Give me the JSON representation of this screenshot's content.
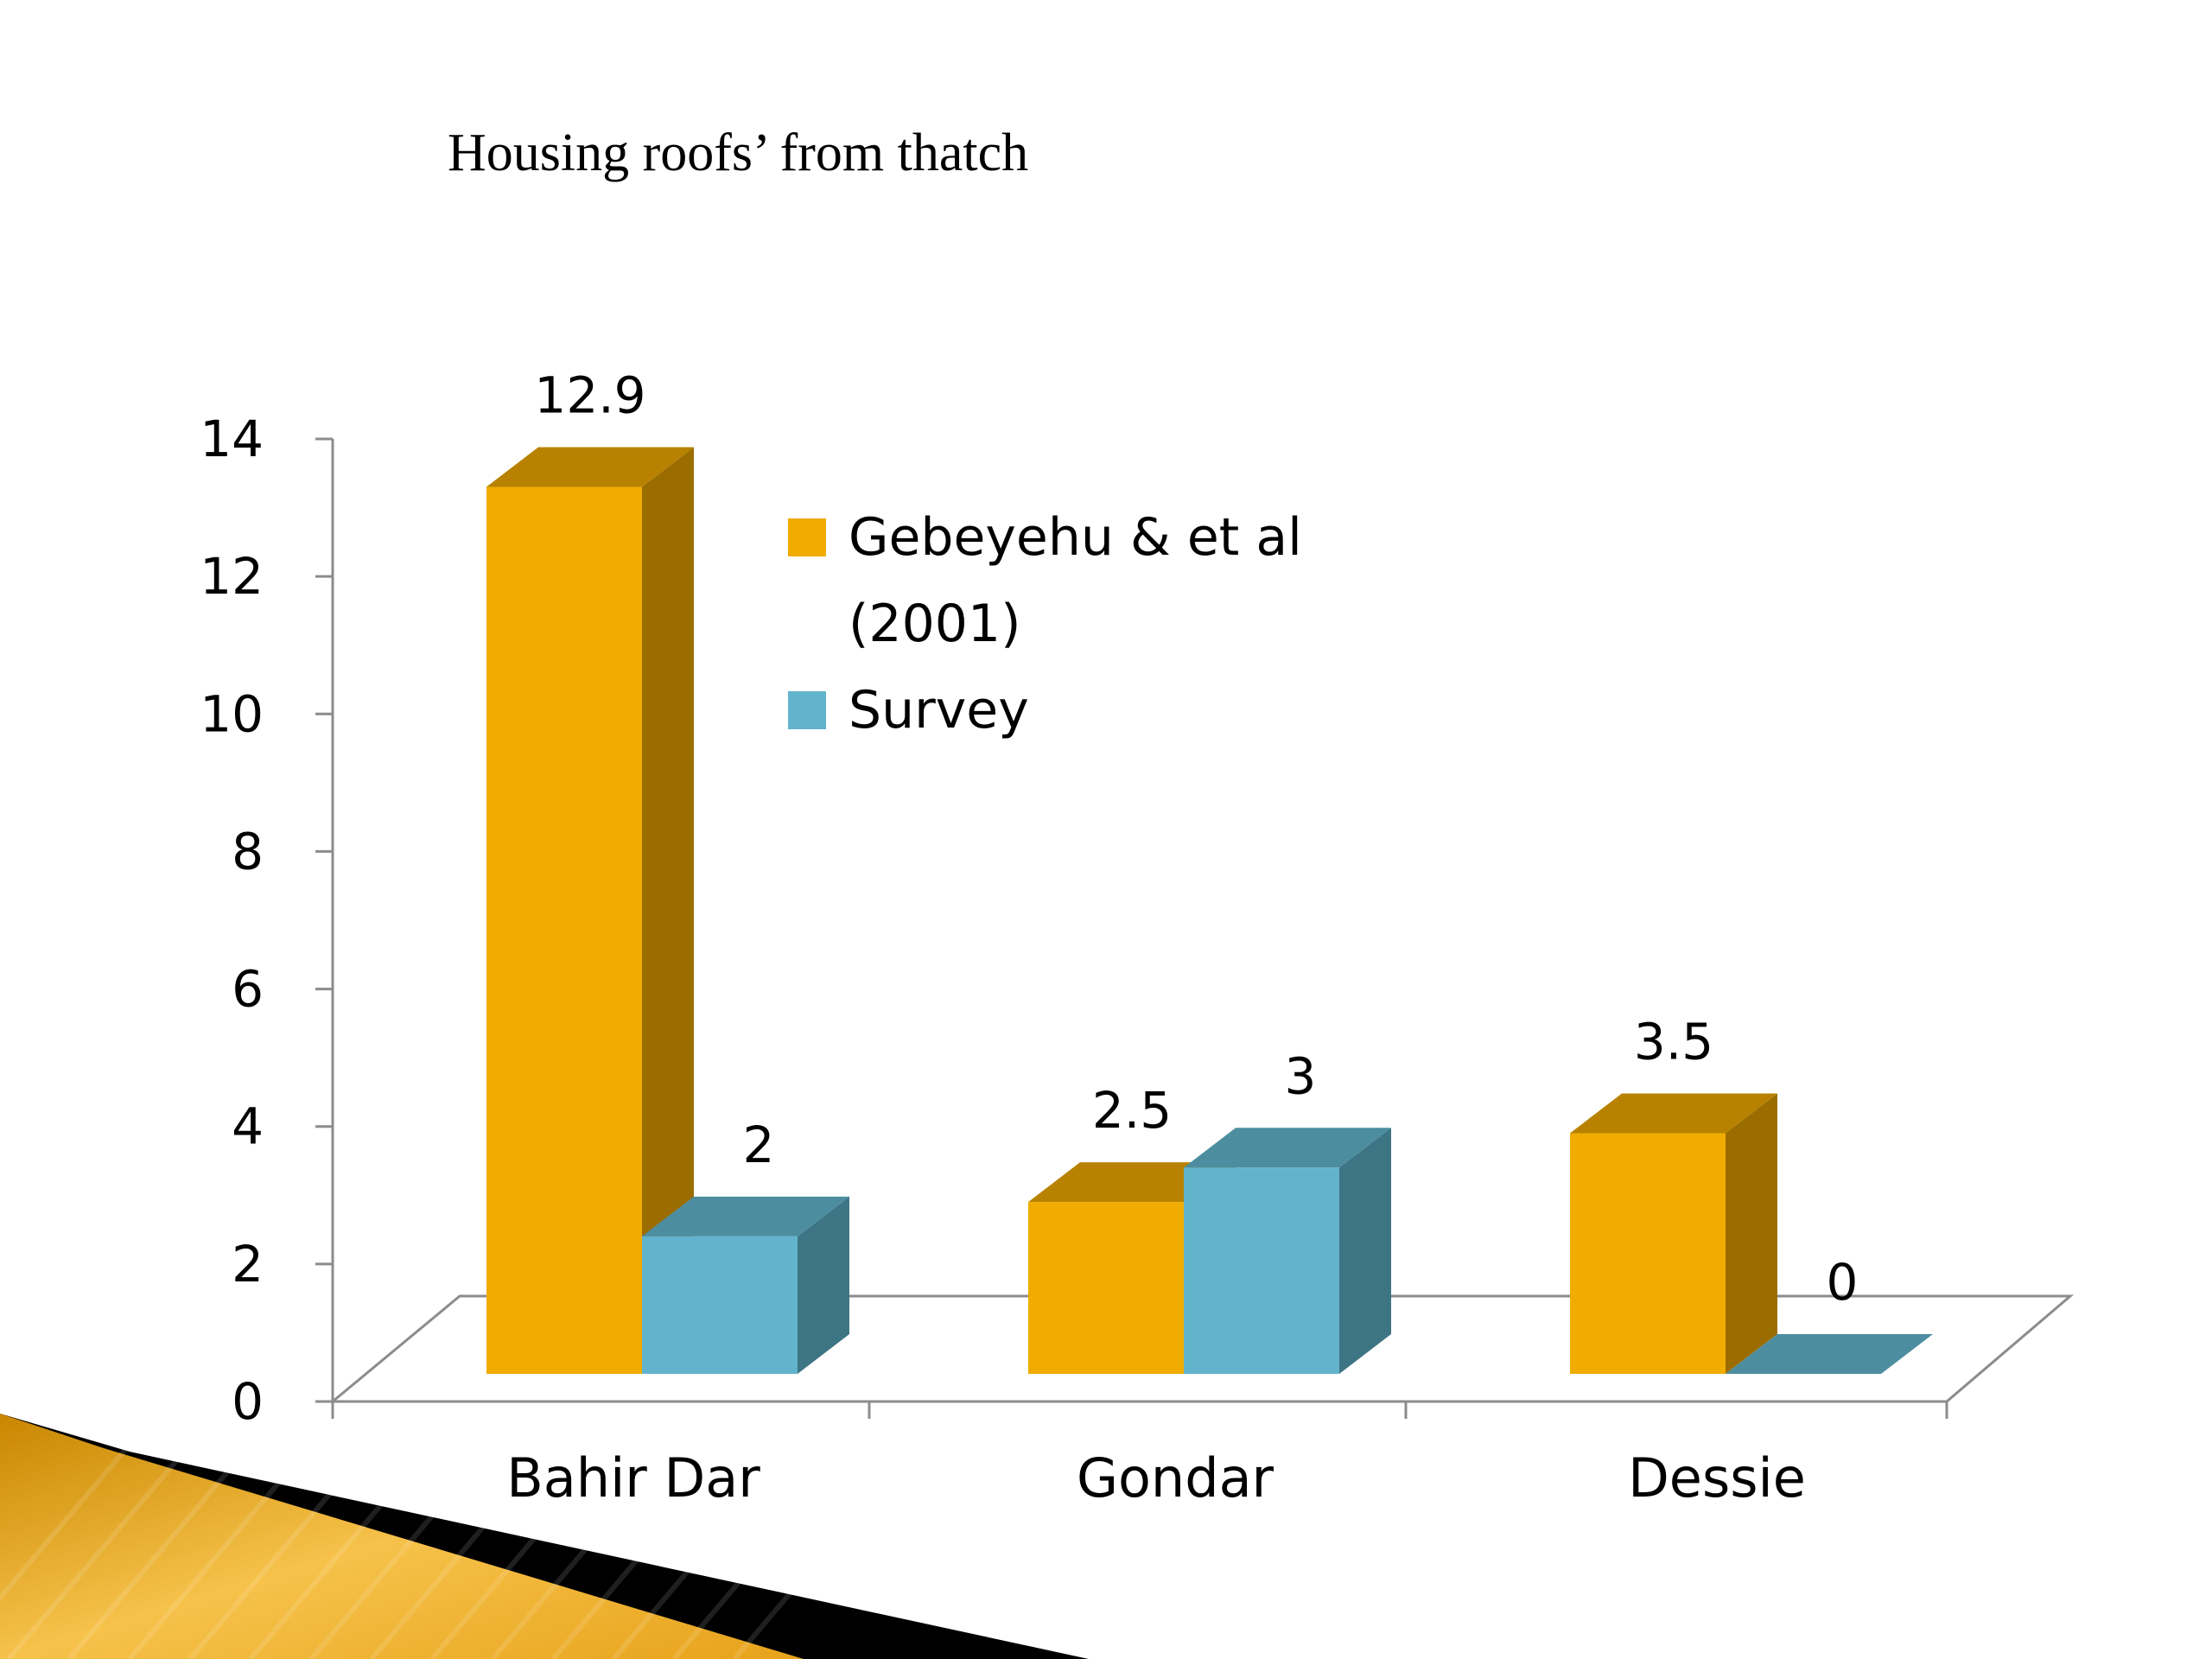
{
  "colors": {
    "gebeyehu_front": "#f0ac00",
    "gebeyehu_side": "#9b6d00",
    "gebeyehu_top": "#b88200",
    "survey_front": "#62b4cc",
    "survey_side": "#3d7585",
    "survey_top": "#4c8ea0",
    "decor_gold": "#e7a21a",
    "decor_black": "#000000",
    "decor_cream": "#fde6cc"
  },
  "chart_data": {
    "type": "bar",
    "title": "Housing roofs’ from thatch",
    "categories": [
      "Bahir Dar",
      "Gondar",
      "Dessie"
    ],
    "series": [
      {
        "name": "Gebeyehu & et al (2001)",
        "values": [
          12.9,
          2.5,
          3.5
        ]
      },
      {
        "name": "Survey",
        "values": [
          2,
          3,
          0
        ]
      }
    ],
    "data_labels": [
      [
        "12.9",
        "2.5",
        "3.5"
      ],
      [
        "2",
        "3",
        "0"
      ]
    ],
    "legend": {
      "lines": [
        [
          "Gebeyehu & et al",
          "(2001)"
        ],
        [
          "Survey"
        ]
      ],
      "position": "top-center"
    },
    "ylim": [
      0,
      14
    ],
    "yticks": [
      "0",
      "2",
      "4",
      "6",
      "8",
      "10",
      "12",
      "14"
    ],
    "xlabel": "",
    "ylabel": "",
    "grid": false,
    "style": "3d-clustered-column"
  }
}
